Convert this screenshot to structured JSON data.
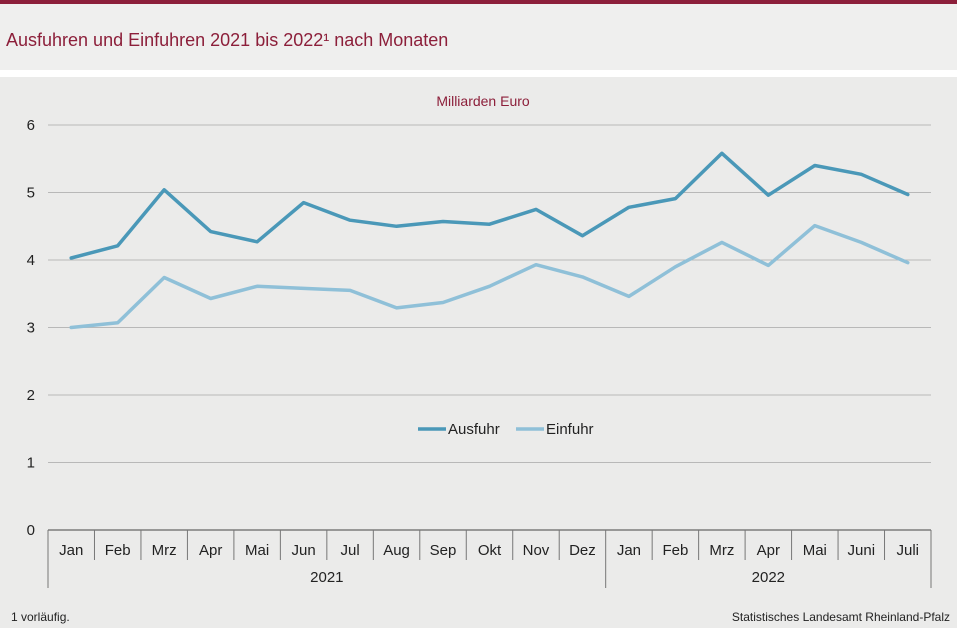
{
  "header": {
    "title": "Ausfuhren und Einfuhren 2021 bis 2022¹ nach Monaten"
  },
  "footer": {
    "footnote": "1 vorläufig.",
    "source": "Statistisches Landesamt  Rheinland-Pfalz"
  },
  "colors": {
    "brand": "#8c1f3a",
    "ausfuhr": "#4a98b8",
    "einfuhr": "#8fc0d8",
    "grid": "#b8b8b8"
  },
  "chart_data": {
    "type": "line",
    "unit_label": "Milliarden Euro",
    "categories": [
      "Jan",
      "Feb",
      "Mrz",
      "Apr",
      "Mai",
      "Jun",
      "Jul",
      "Aug",
      "Sep",
      "Okt",
      "Nov",
      "Dez",
      "Jan",
      "Feb",
      "Mrz",
      "Apr",
      "Mai",
      "Juni",
      "Juli"
    ],
    "year_groups": [
      {
        "label": "2021",
        "count": 12
      },
      {
        "label": "2022",
        "count": 7
      }
    ],
    "series": [
      {
        "name": "Ausfuhr",
        "values": [
          4.03,
          4.21,
          5.04,
          4.42,
          4.27,
          4.85,
          4.59,
          4.5,
          4.57,
          4.53,
          4.75,
          4.36,
          4.78,
          4.91,
          5.58,
          4.96,
          5.4,
          5.27,
          4.97
        ]
      },
      {
        "name": "Einfuhr",
        "values": [
          3.0,
          3.07,
          3.74,
          3.43,
          3.61,
          3.58,
          3.55,
          3.29,
          3.37,
          3.61,
          3.93,
          3.75,
          3.46,
          3.9,
          4.26,
          3.92,
          4.51,
          4.26,
          3.96
        ]
      }
    ],
    "ylim": [
      0,
      6
    ],
    "yticks": [
      0,
      1,
      2,
      3,
      4,
      5,
      6
    ],
    "grid": true,
    "legend": "center"
  }
}
